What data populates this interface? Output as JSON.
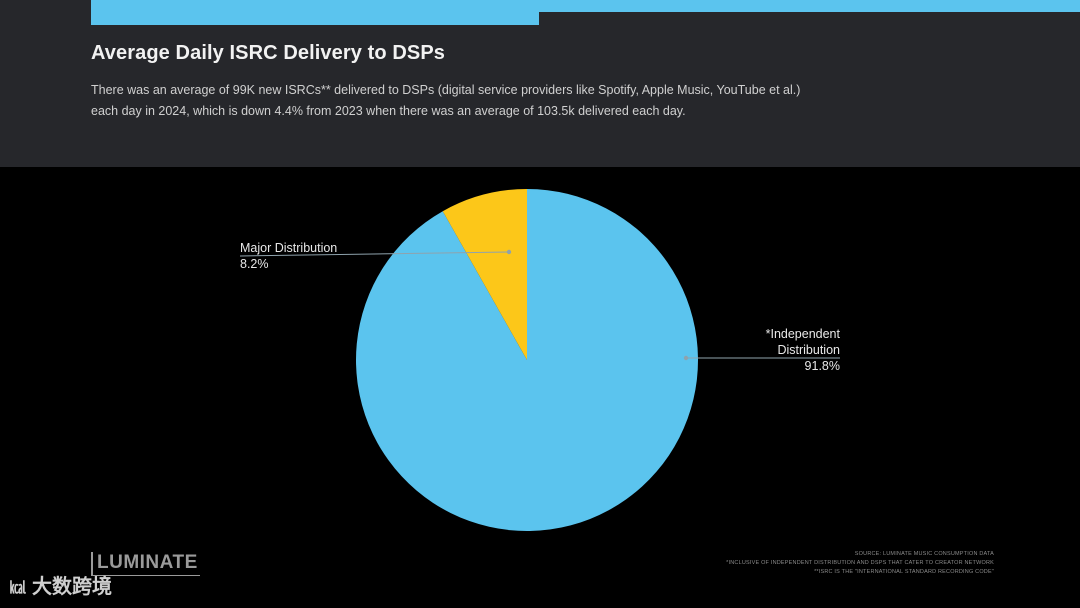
{
  "header": {
    "title": "Average Daily ISRC Delivery to DSPs",
    "subtitle_line1": "There was an average of 99K new ISRCs** delivered to DSPs (digital service providers like Spotify, Apple Music, YouTube et al.)",
    "subtitle_line2": "each day in 2024, which is down 4.4% from 2023 when there was an average of 103.5k delivered each day."
  },
  "chart_data": {
    "type": "pie",
    "slices": [
      {
        "label": "*Independent Distribution",
        "label_line1": "*Independent",
        "label_line2": "Distribution",
        "value": 91.8,
        "value_text": "91.8%",
        "color": "#5bc4ee"
      },
      {
        "label": "Major Distribution",
        "value": 8.2,
        "value_text": "8.2%",
        "color": "#fcc719"
      }
    ]
  },
  "branding": {
    "logo": "LUMINATE",
    "watermark": "大数跨境"
  },
  "footnotes": [
    "SOURCE: LUMINATE MUSIC CONSUMPTION DATA",
    "*INCLUSIVE OF INDEPENDENT DISTRIBUTION AND DSPS THAT CATER TO CREATOR NETWORK",
    "**ISRC IS THE \"INTERNATIONAL STANDARD RECORDING CODE\""
  ],
  "colors": {
    "accent": "#5bc4ee",
    "header_bg": "#26272b",
    "background": "#000000"
  }
}
